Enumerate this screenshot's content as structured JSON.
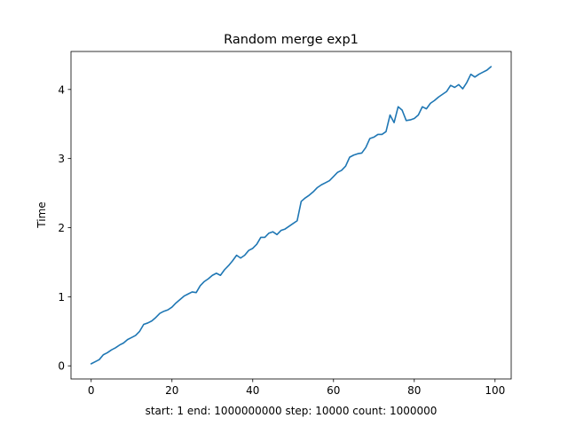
{
  "chart_data": {
    "type": "line",
    "title": "Random merge exp1",
    "xlabel": "start: 1 end: 1000000000 step: 10000 count: 1000000",
    "ylabel": "Time",
    "xlim": [
      -5,
      104
    ],
    "ylim": [
      -0.19,
      4.55
    ],
    "xticks": [
      0,
      20,
      40,
      60,
      80,
      100
    ],
    "yticks": [
      0,
      1,
      2,
      3,
      4
    ],
    "grid": false,
    "line_color": "#1f77b4",
    "series": [
      {
        "x": [
          0,
          1,
          2,
          3,
          4,
          5,
          6,
          7,
          8,
          9,
          10,
          11,
          12,
          13,
          14,
          15,
          16,
          17,
          18,
          19,
          20,
          21,
          22,
          23,
          24,
          25,
          26,
          27,
          28,
          29,
          30,
          31,
          32,
          33,
          34,
          35,
          36,
          37,
          38,
          39,
          40,
          41,
          42,
          43,
          44,
          45,
          46,
          47,
          48,
          49,
          50,
          51,
          52,
          53,
          54,
          55,
          56,
          57,
          58,
          59,
          60,
          61,
          62,
          63,
          64,
          65,
          66,
          67,
          68,
          69,
          70,
          71,
          72,
          73,
          74,
          75,
          76,
          77,
          78,
          79,
          80,
          81,
          82,
          83,
          84,
          85,
          86,
          87,
          88,
          89,
          90,
          91,
          92,
          93,
          94,
          95,
          96,
          97,
          98,
          99
        ],
        "y": [
          0.03,
          0.06,
          0.09,
          0.16,
          0.19,
          0.23,
          0.26,
          0.3,
          0.33,
          0.38,
          0.41,
          0.44,
          0.5,
          0.6,
          0.62,
          0.65,
          0.7,
          0.76,
          0.79,
          0.81,
          0.85,
          0.91,
          0.96,
          1.01,
          1.04,
          1.07,
          1.06,
          1.16,
          1.22,
          1.26,
          1.31,
          1.34,
          1.31,
          1.39,
          1.45,
          1.52,
          1.6,
          1.56,
          1.6,
          1.67,
          1.7,
          1.76,
          1.86,
          1.86,
          1.92,
          1.94,
          1.9,
          1.96,
          1.98,
          2.02,
          2.06,
          2.1,
          2.38,
          2.43,
          2.47,
          2.52,
          2.58,
          2.62,
          2.65,
          2.68,
          2.74,
          2.8,
          2.83,
          2.89,
          3.02,
          3.05,
          3.07,
          3.08,
          3.16,
          3.29,
          3.31,
          3.35,
          3.35,
          3.39,
          3.63,
          3.52,
          3.75,
          3.7,
          3.55,
          3.56,
          3.58,
          3.63,
          3.75,
          3.72,
          3.8,
          3.84,
          3.89,
          3.93,
          3.97,
          4.06,
          4.03,
          4.07,
          4.01,
          4.1,
          4.22,
          4.18,
          4.22,
          4.25,
          4.28,
          4.33
        ]
      }
    ]
  }
}
